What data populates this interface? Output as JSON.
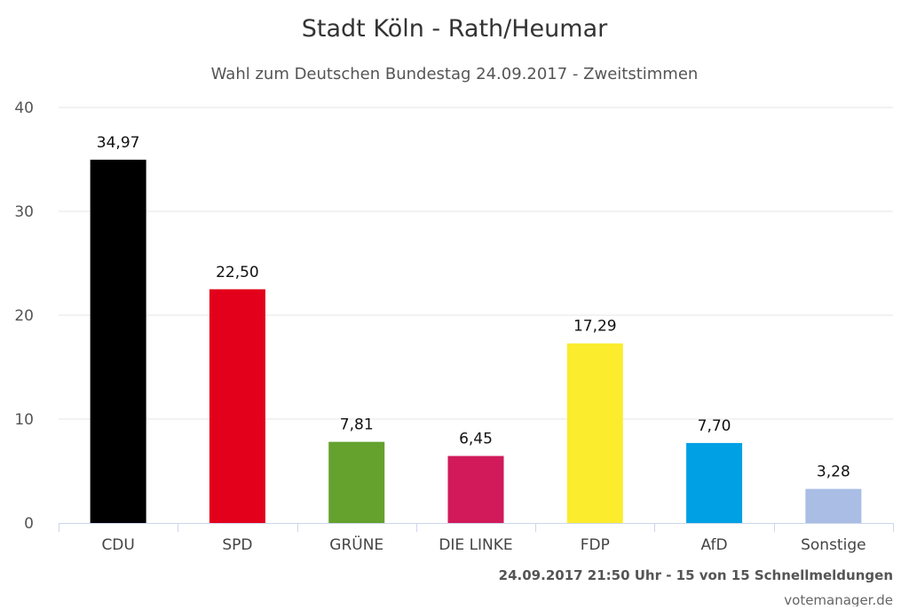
{
  "chart_data": {
    "type": "bar",
    "title": "Stadt Köln - Rath/Heumar",
    "subtitle": "Wahl zum Deutschen Bundestag 24.09.2017 - Zweitstimmen",
    "categories": [
      "CDU",
      "SPD",
      "GRÜNE",
      "DIE LINKE",
      "FDP",
      "AfD",
      "Sonstige"
    ],
    "values": [
      34.97,
      22.5,
      7.81,
      6.45,
      17.29,
      7.7,
      3.28
    ],
    "value_labels": [
      "34,97",
      "22,50",
      "7,81",
      "6,45",
      "17,29",
      "7,70",
      "3,28"
    ],
    "colors": [
      "#000000",
      "#e3001b",
      "#64a12d",
      "#d2195a",
      "#fbec2e",
      "#00a1e4",
      "#a9bde5"
    ],
    "ylim": [
      0,
      40
    ],
    "yticks": [
      0,
      10,
      20,
      30,
      40
    ],
    "grid": true,
    "xlabel": "",
    "ylabel": ""
  },
  "footer": {
    "status": "24.09.2017 21:50 Uhr - 15 von 15 Schnellmeldungen",
    "credit": "votemanager.de"
  }
}
